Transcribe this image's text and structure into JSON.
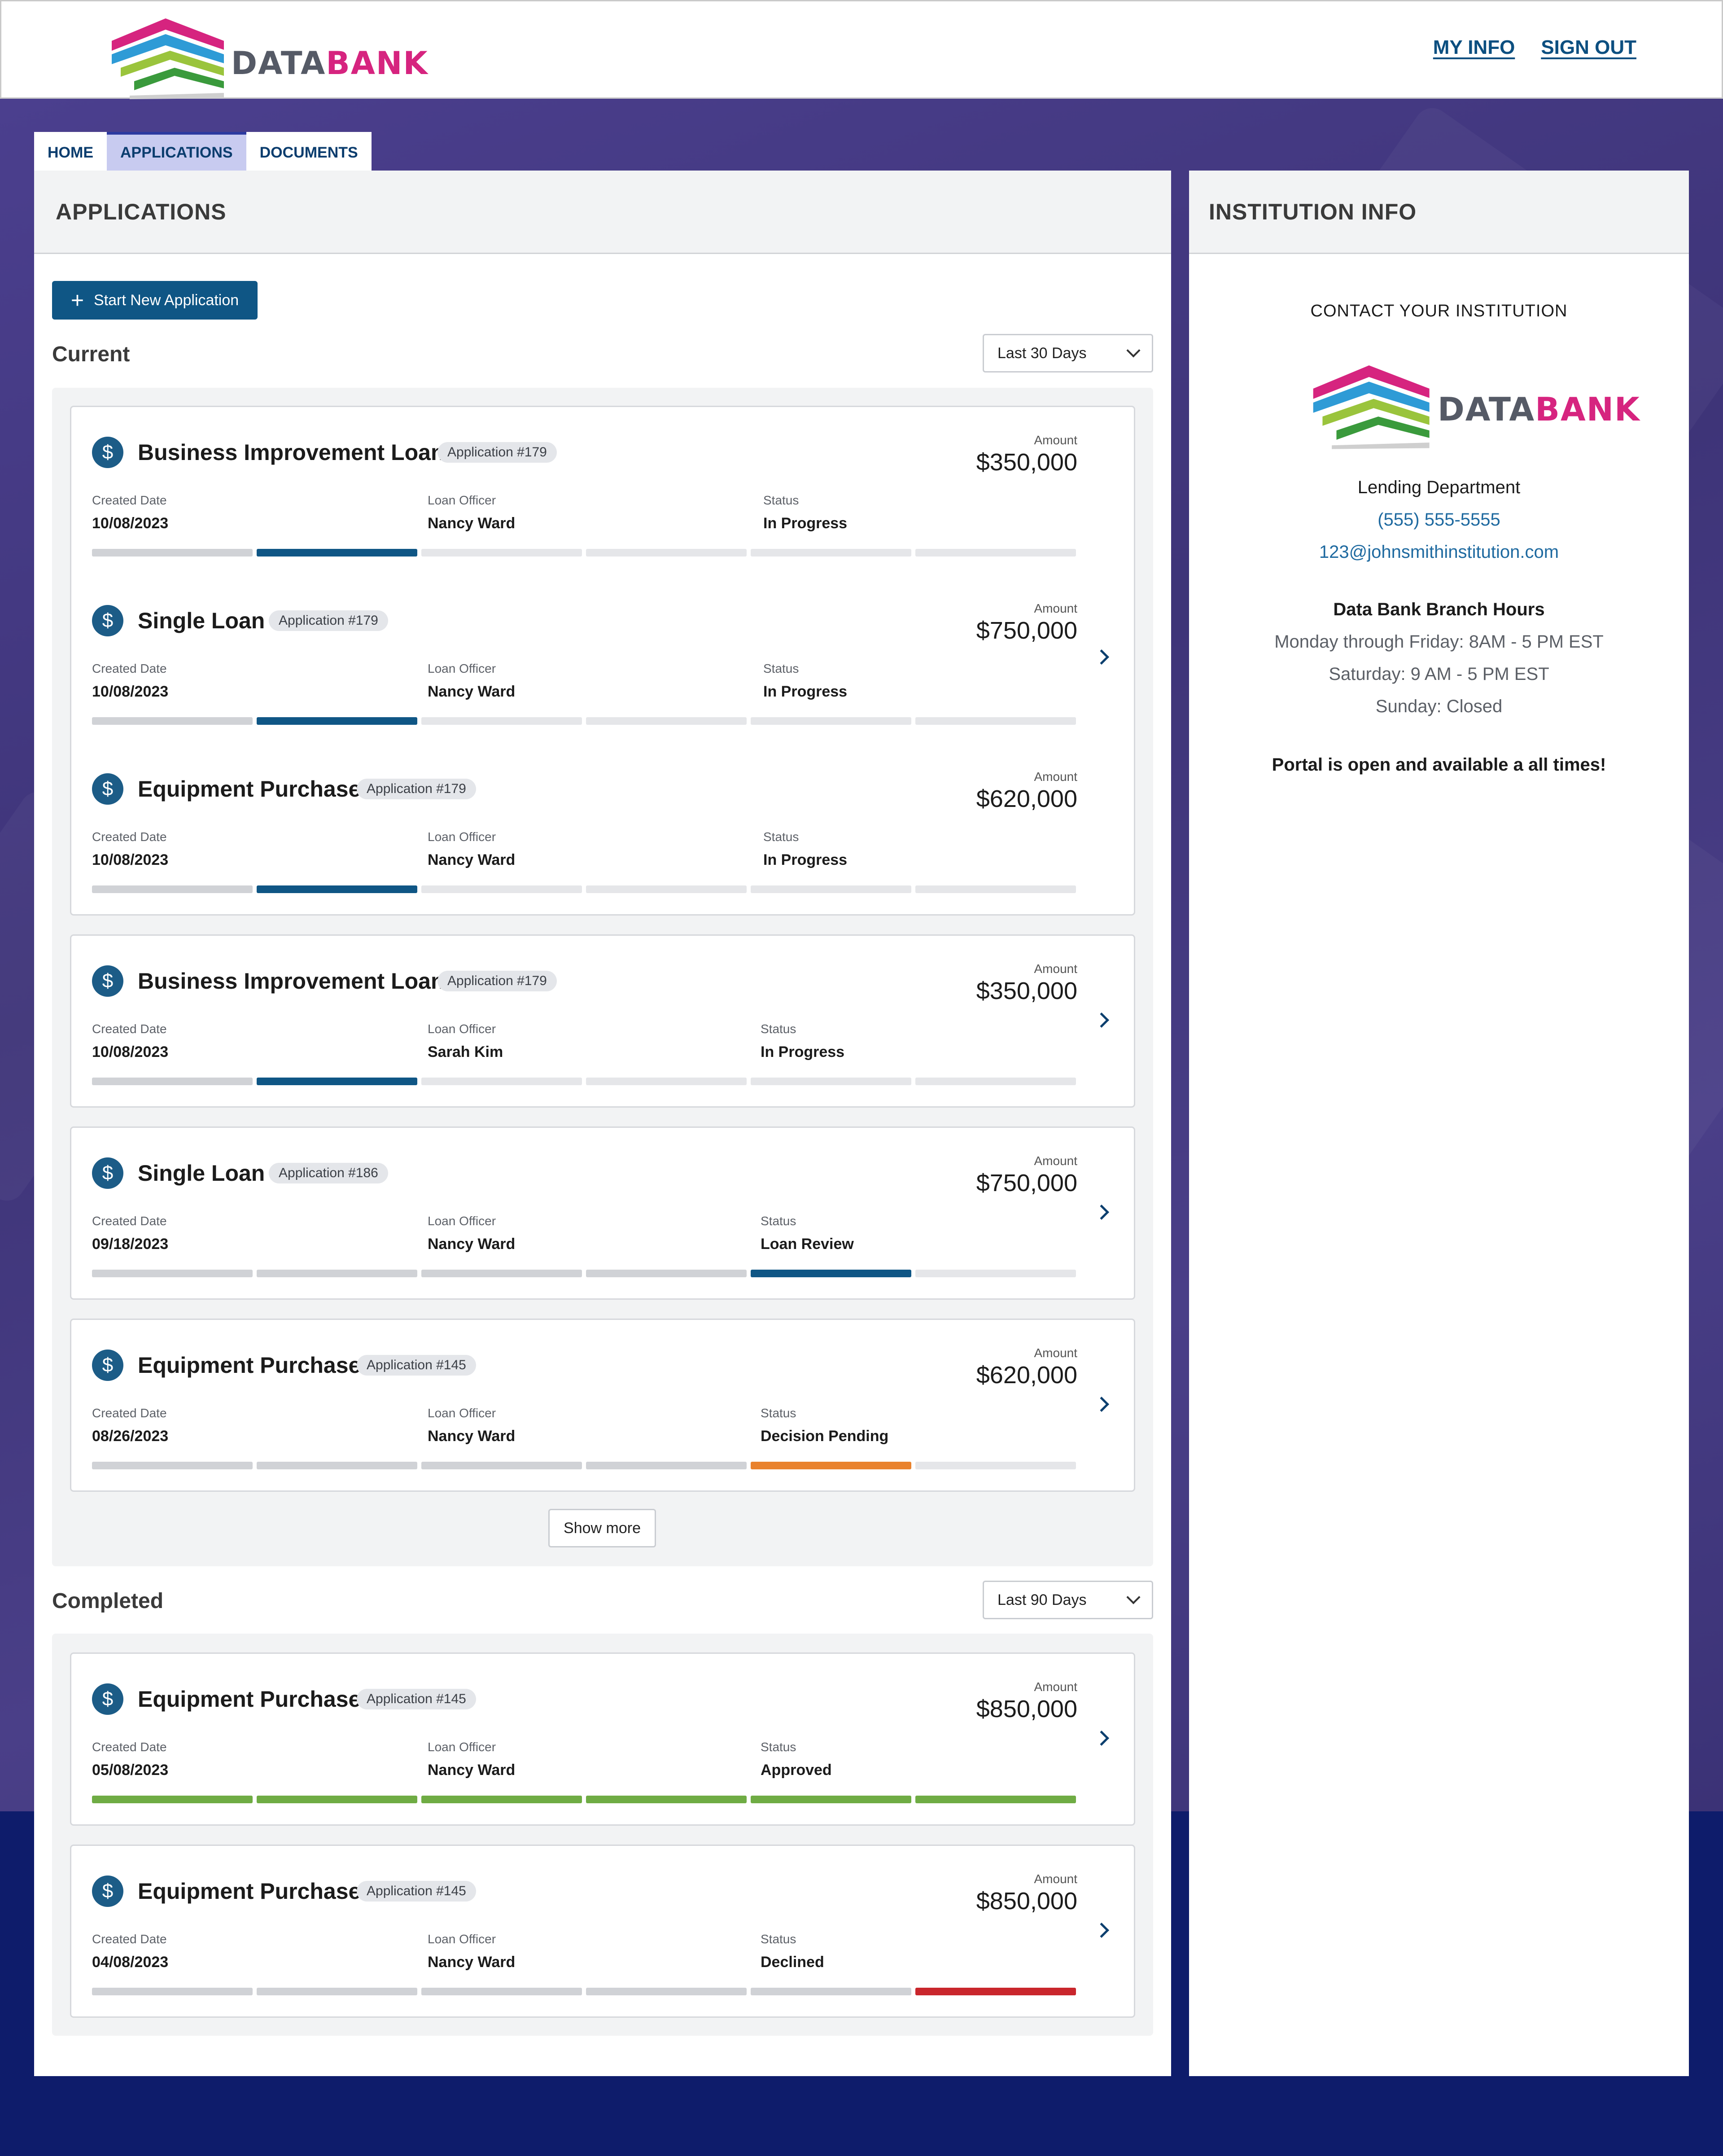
{
  "brand": {
    "word_part1": "DATA",
    "word_part2": "BANK"
  },
  "top_nav": {
    "my_info": "MY INFO",
    "sign_out": "SIGN OUT"
  },
  "tabs": [
    {
      "label": "HOME",
      "active": false
    },
    {
      "label": "APPLICATIONS",
      "active": true
    },
    {
      "label": "DOCUMENTS",
      "active": false
    }
  ],
  "applications_panel": {
    "title": "APPLICATIONS",
    "new_button": "Start New Application",
    "current": {
      "title": "Current",
      "filter": "Last 30 Days",
      "items": [
        {
          "title": "Business Improvement Loan",
          "badge": "Application #179",
          "amount_label": "Amount",
          "amount": "$350,000",
          "created_label": "Created Date",
          "created": "10/08/2023",
          "officer_label": "Loan Officer",
          "officer": "Nancy Ward",
          "status_label": "Status",
          "status": "In Progress",
          "progress_step": 2,
          "progress_color": "blue"
        },
        {
          "title": "Single Loan",
          "badge": "Application #179",
          "amount_label": "Amount",
          "amount": "$750,000",
          "created_label": "Created Date",
          "created": "10/08/2023",
          "officer_label": "Loan Officer",
          "officer": "Nancy Ward",
          "status_label": "Status",
          "status": "In Progress",
          "progress_step": 2,
          "progress_color": "blue"
        },
        {
          "title": "Equipment Purchase",
          "badge": "Application #179",
          "amount_label": "Amount",
          "amount": "$620,000",
          "created_label": "Created Date",
          "created": "10/08/2023",
          "officer_label": "Loan Officer",
          "officer": "Nancy Ward",
          "status_label": "Status",
          "status": "In Progress",
          "progress_step": 2,
          "progress_color": "blue"
        },
        {
          "title": "Business Improvement Loan",
          "badge": "Application #179",
          "amount_label": "Amount",
          "amount": "$350,000",
          "created_label": "Created Date",
          "created": "10/08/2023",
          "officer_label": "Loan Officer",
          "officer": "Sarah Kim",
          "status_label": "Status",
          "status": "In Progress",
          "progress_step": 2,
          "progress_color": "blue"
        },
        {
          "title": "Single Loan",
          "badge": "Application #186",
          "amount_label": "Amount",
          "amount": "$750,000",
          "created_label": "Created Date",
          "created": "09/18/2023",
          "officer_label": "Loan Officer",
          "officer": "Nancy Ward",
          "status_label": "Status",
          "status": "Loan Review",
          "progress_step": 5,
          "progress_color": "blue"
        },
        {
          "title": "Equipment Purchase",
          "badge": "Application #145",
          "amount_label": "Amount",
          "amount": "$620,000",
          "created_label": "Created Date",
          "created": "08/26/2023",
          "officer_label": "Loan Officer",
          "officer": "Nancy Ward",
          "status_label": "Status",
          "status": "Decision Pending",
          "progress_step": 5,
          "progress_color": "orange"
        }
      ],
      "show_more": "Show more"
    },
    "completed": {
      "title": "Completed",
      "filter": "Last 90 Days",
      "items": [
        {
          "title": "Equipment Purchase",
          "badge": "Application #145",
          "amount_label": "Amount",
          "amount": "$850,000",
          "created_label": "Created Date",
          "created": "05/08/2023",
          "officer_label": "Loan Officer",
          "officer": "Nancy Ward",
          "status_label": "Status",
          "status": "Approved",
          "progress_step": 6,
          "progress_color": "green"
        },
        {
          "title": "Equipment Purchase",
          "badge": "Application #145",
          "amount_label": "Amount",
          "amount": "$850,000",
          "created_label": "Created Date",
          "created": "04/08/2023",
          "officer_label": "Loan Officer",
          "officer": "Nancy Ward",
          "status_label": "Status",
          "status": "Declined",
          "progress_step": 6,
          "progress_color": "red"
        }
      ]
    }
  },
  "institution_panel": {
    "title": "INSTITUTION INFO",
    "contact_heading": "CONTACT YOUR INSTITUTION",
    "department": "Lending Department",
    "phone": "(555) 555-5555",
    "email": "123@johnsmithinstitution.com",
    "hours_title": "Data Bank Branch Hours",
    "hours_weekday": "Monday through Friday: 8AM - 5 PM EST",
    "hours_saturday": "Saturday: 9 AM - 5 PM EST",
    "hours_sunday": "Sunday: Closed",
    "note": "Portal is open and available a all times!"
  },
  "colors": {
    "primary": "#0f5685",
    "progress_blue": "#0f5685",
    "progress_orange": "#e9822d",
    "progress_green": "#6fac44",
    "progress_red": "#c9262c",
    "background_purple": "#4b3f8e",
    "background_navy": "#0e1c6b"
  },
  "icons": {
    "application": "dollar-icon",
    "open": "chevron-right-icon",
    "dropdown": "chevron-down-icon",
    "add": "plus-icon"
  }
}
